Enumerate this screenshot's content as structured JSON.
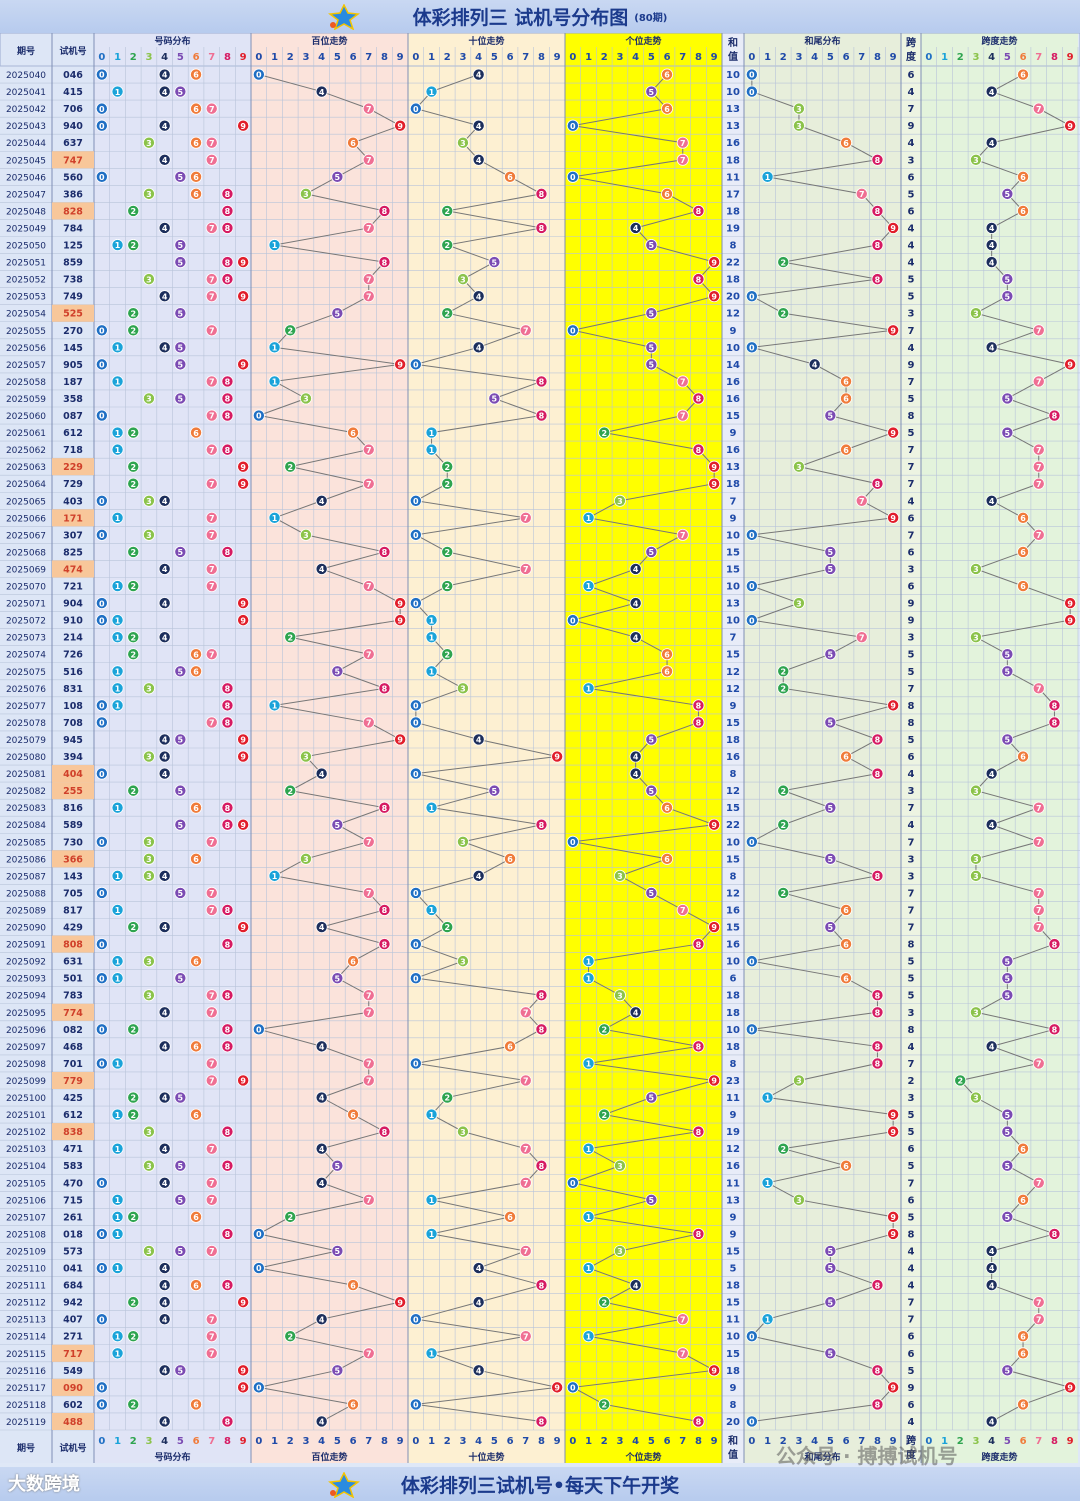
{
  "header": {
    "title": "体彩排列三 试机号分布图",
    "subtitle": "(80期)"
  },
  "footer": {
    "text": "体彩排列三试机号•每天下午开奖",
    "brand": "大数跨境",
    "watermark": "公众号 · 搏搏试机号"
  },
  "columns": {
    "period": "期号",
    "trial": "试机号",
    "dist": "号码分布",
    "hundreds": "百位走势",
    "tens": "十位走势",
    "units": "个位走势",
    "sum": "和值",
    "sum_tail": "和尾分布",
    "span": "跨度",
    "span_trend": "跨度走势"
  },
  "chart_data": {
    "type": "table",
    "periods": [
      "2025040",
      "2025041",
      "2025042",
      "2025043",
      "2025044",
      "2025045",
      "2025046",
      "2025047",
      "2025048",
      "2025049",
      "2025050",
      "2025051",
      "2025052",
      "2025053",
      "2025054",
      "2025055",
      "2025056",
      "2025057",
      "2025058",
      "2025059",
      "2025060",
      "2025061",
      "2025062",
      "2025063",
      "2025064",
      "2025065",
      "2025066",
      "2025067",
      "2025068",
      "2025069",
      "2025070",
      "2025071",
      "2025072",
      "2025073",
      "2025074",
      "2025075",
      "2025076",
      "2025077",
      "2025078",
      "2025079",
      "2025080",
      "2025081",
      "2025082",
      "2025083",
      "2025084",
      "2025085",
      "2025086",
      "2025087",
      "2025088",
      "2025089",
      "2025090",
      "2025091",
      "2025092",
      "2025093",
      "2025094",
      "2025095",
      "2025096",
      "2025097",
      "2025098",
      "2025099",
      "2025100",
      "2025101",
      "2025102",
      "2025103",
      "2025104",
      "2025105",
      "2025106",
      "2025107",
      "2025108",
      "2025109",
      "2025110",
      "2025111",
      "2025112",
      "2025113",
      "2025114",
      "2025115",
      "2025116",
      "2025117",
      "2025118",
      "2025119"
    ],
    "numbers": [
      "046",
      "415",
      "706",
      "940",
      "637",
      "747",
      "560",
      "386",
      "828",
      "784",
      "125",
      "859",
      "738",
      "749",
      "525",
      "270",
      "145",
      "905",
      "187",
      "358",
      "087",
      "612",
      "718",
      "229",
      "729",
      "403",
      "171",
      "307",
      "825",
      "474",
      "721",
      "904",
      "910",
      "214",
      "726",
      "516",
      "831",
      "108",
      "708",
      "945",
      "394",
      "404",
      "255",
      "816",
      "589",
      "730",
      "366",
      "143",
      "705",
      "817",
      "429",
      "808",
      "631",
      "501",
      "783",
      "774",
      "082",
      "468",
      "701",
      "779",
      "425",
      "612",
      "838",
      "471",
      "583",
      "470",
      "715",
      "261",
      "018",
      "573",
      "041",
      "684",
      "942",
      "407",
      "271",
      "717",
      "549",
      "090",
      "602",
      "488"
    ],
    "sums": [
      10,
      10,
      13,
      13,
      16,
      18,
      11,
      17,
      18,
      19,
      8,
      22,
      18,
      20,
      12,
      9,
      10,
      14,
      16,
      16,
      15,
      9,
      16,
      13,
      18,
      7,
      9,
      10,
      15,
      15,
      10,
      13,
      10,
      7,
      15,
      12,
      12,
      9,
      15,
      18,
      16,
      8,
      12,
      15,
      22,
      10,
      15,
      8,
      12,
      16,
      15,
      16,
      10,
      6,
      18,
      18,
      10,
      18,
      8,
      23,
      11,
      9,
      19,
      12,
      16,
      11,
      13,
      9,
      9,
      15,
      5,
      18,
      15,
      11,
      10,
      15,
      18,
      9,
      8,
      20
    ],
    "spans": [
      6,
      4,
      7,
      9,
      4,
      3,
      6,
      5,
      6,
      4,
      4,
      4,
      5,
      5,
      3,
      7,
      4,
      9,
      7,
      5,
      8,
      5,
      7,
      7,
      7,
      4,
      6,
      7,
      6,
      3,
      6,
      9,
      9,
      3,
      5,
      5,
      7,
      8,
      8,
      5,
      6,
      4,
      3,
      7,
      4,
      7,
      3,
      3,
      7,
      7,
      7,
      8,
      5,
      5,
      5,
      3,
      8,
      4,
      7,
      2,
      3,
      5,
      5,
      6,
      5,
      7,
      6,
      5,
      8,
      4,
      4,
      4,
      7,
      7,
      6,
      6,
      5,
      9,
      6,
      4
    ],
    "digits": [
      "0",
      "1",
      "2",
      "3",
      "4",
      "5",
      "6",
      "7",
      "8",
      "9"
    ],
    "colors": {
      "0": "#1f6fc4",
      "1": "#1aa3d9",
      "2": "#2ea44f",
      "3": "#8bc34a",
      "4": "#1c2e5c",
      "5": "#7b4bb3",
      "6": "#f07b3a",
      "7": "#ef6f93",
      "8": "#d61a62",
      "9": "#e11d2a"
    }
  }
}
